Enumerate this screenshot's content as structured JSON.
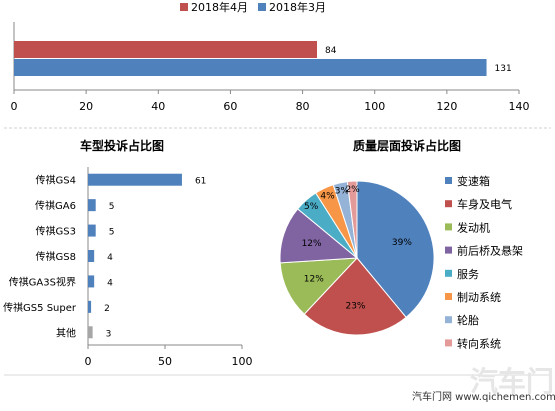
{
  "footer": {
    "source": "汽车门网 www.qichemen.com",
    "watermark": "汽车门"
  },
  "chart_data": [
    {
      "type": "bar",
      "orientation": "horizontal",
      "series": [
        {
          "name": "2018年4月",
          "values": [
            84
          ],
          "color": "#c0504d"
        },
        {
          "name": "2018年3月",
          "values": [
            131
          ],
          "color": "#4f81bd"
        }
      ],
      "xlim": [
        0,
        140
      ],
      "xticks": [
        0,
        20,
        40,
        60,
        80,
        100,
        120,
        140
      ],
      "legend_position": "top",
      "grid": false
    },
    {
      "type": "bar",
      "orientation": "horizontal",
      "title": "车型投诉占比图",
      "categories": [
        "传祺GS4",
        "传祺GA6",
        "传祺GS3",
        "传祺GS8",
        "传祺GA3S视界",
        "传祺GS5 Super",
        "其他"
      ],
      "values": [
        61,
        5,
        5,
        4,
        4,
        2,
        3
      ],
      "colors": [
        "#4f81bd",
        "#4f81bd",
        "#4f81bd",
        "#4f81bd",
        "#4f81bd",
        "#4f81bd",
        "#a6a6a6"
      ],
      "xlim": [
        0,
        100
      ],
      "xticks": [
        0,
        50,
        100
      ]
    },
    {
      "type": "pie",
      "title": "质量层面投诉占比图",
      "labels": [
        "变速箱",
        "车身及电气",
        "发动机",
        "前后桥及悬架",
        "服务",
        "制动系统",
        "轮胎",
        "转向系统"
      ],
      "values": [
        39,
        23,
        12,
        12,
        5,
        4,
        3,
        2
      ],
      "value_labels": [
        "39%",
        "23%",
        "12%",
        "12%",
        "5%",
        "4%",
        "3%",
        "2%"
      ],
      "colors": [
        "#4f81bd",
        "#c0504d",
        "#9bbb59",
        "#8064a2",
        "#4bacc6",
        "#f79646",
        "#95b3d7",
        "#e39a98"
      ],
      "legend_position": "right"
    }
  ]
}
